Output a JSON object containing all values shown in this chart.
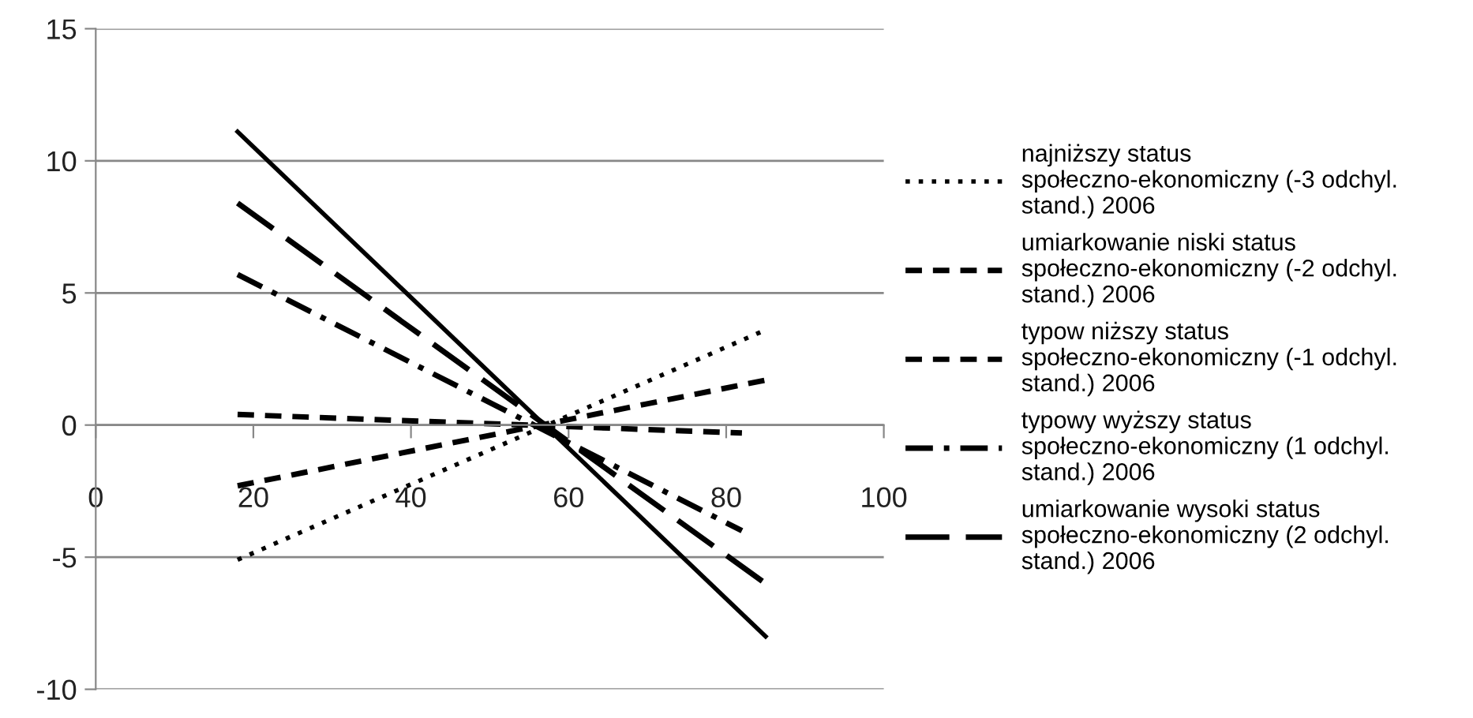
{
  "chart_data": {
    "type": "line",
    "xlim": [
      0,
      100
    ],
    "xticks": [
      0,
      20,
      40,
      60,
      80,
      100
    ],
    "ylim": [
      -10,
      15
    ],
    "yticks": [
      -10,
      -5,
      0,
      5,
      10,
      15
    ],
    "grid": "y",
    "legend": "right",
    "series": [
      {
        "name": "najniższy status społeczno-ekonomiczny (-3 odchyl. stand.) 2006",
        "color": "#000000",
        "line_style": "dotted",
        "x": [
          18,
          85
        ],
        "values": [
          -5.1,
          3.6
        ]
      },
      {
        "name": "umiarkowanie niski status społeczno-ekonomiczny (-2 odchyl. stand.) 2006",
        "color": "#000000",
        "line_style": "dashed",
        "x": [
          18,
          85
        ],
        "values": [
          -2.3,
          1.7
        ]
      },
      {
        "name": "typow niższy status społeczno-ekonomiczny (-1 odchyl. stand.) 2006",
        "color": "#000000",
        "line_style": "dashed",
        "x": [
          18,
          82
        ],
        "values": [
          0.4,
          -0.3
        ]
      },
      {
        "name": "typowy wyższy status społeczno-ekonomiczny (1 odchyl. stand.) 2006",
        "color": "#000000",
        "line_style": "dashdot",
        "x": [
          18,
          82
        ],
        "values": [
          5.7,
          -4.0
        ]
      },
      {
        "name": "umiarkowanie wysoki status społeczno-ekonomiczny (2 odchyl. stand.) 2006",
        "color": "#000000",
        "line_style": "longdash",
        "x": [
          18,
          85
        ],
        "values": [
          8.4,
          -6.0
        ]
      },
      {
        "color": "#000000",
        "line_style": "solid",
        "x": [
          18,
          85
        ],
        "values": [
          11.1,
          -8.0
        ]
      }
    ]
  }
}
